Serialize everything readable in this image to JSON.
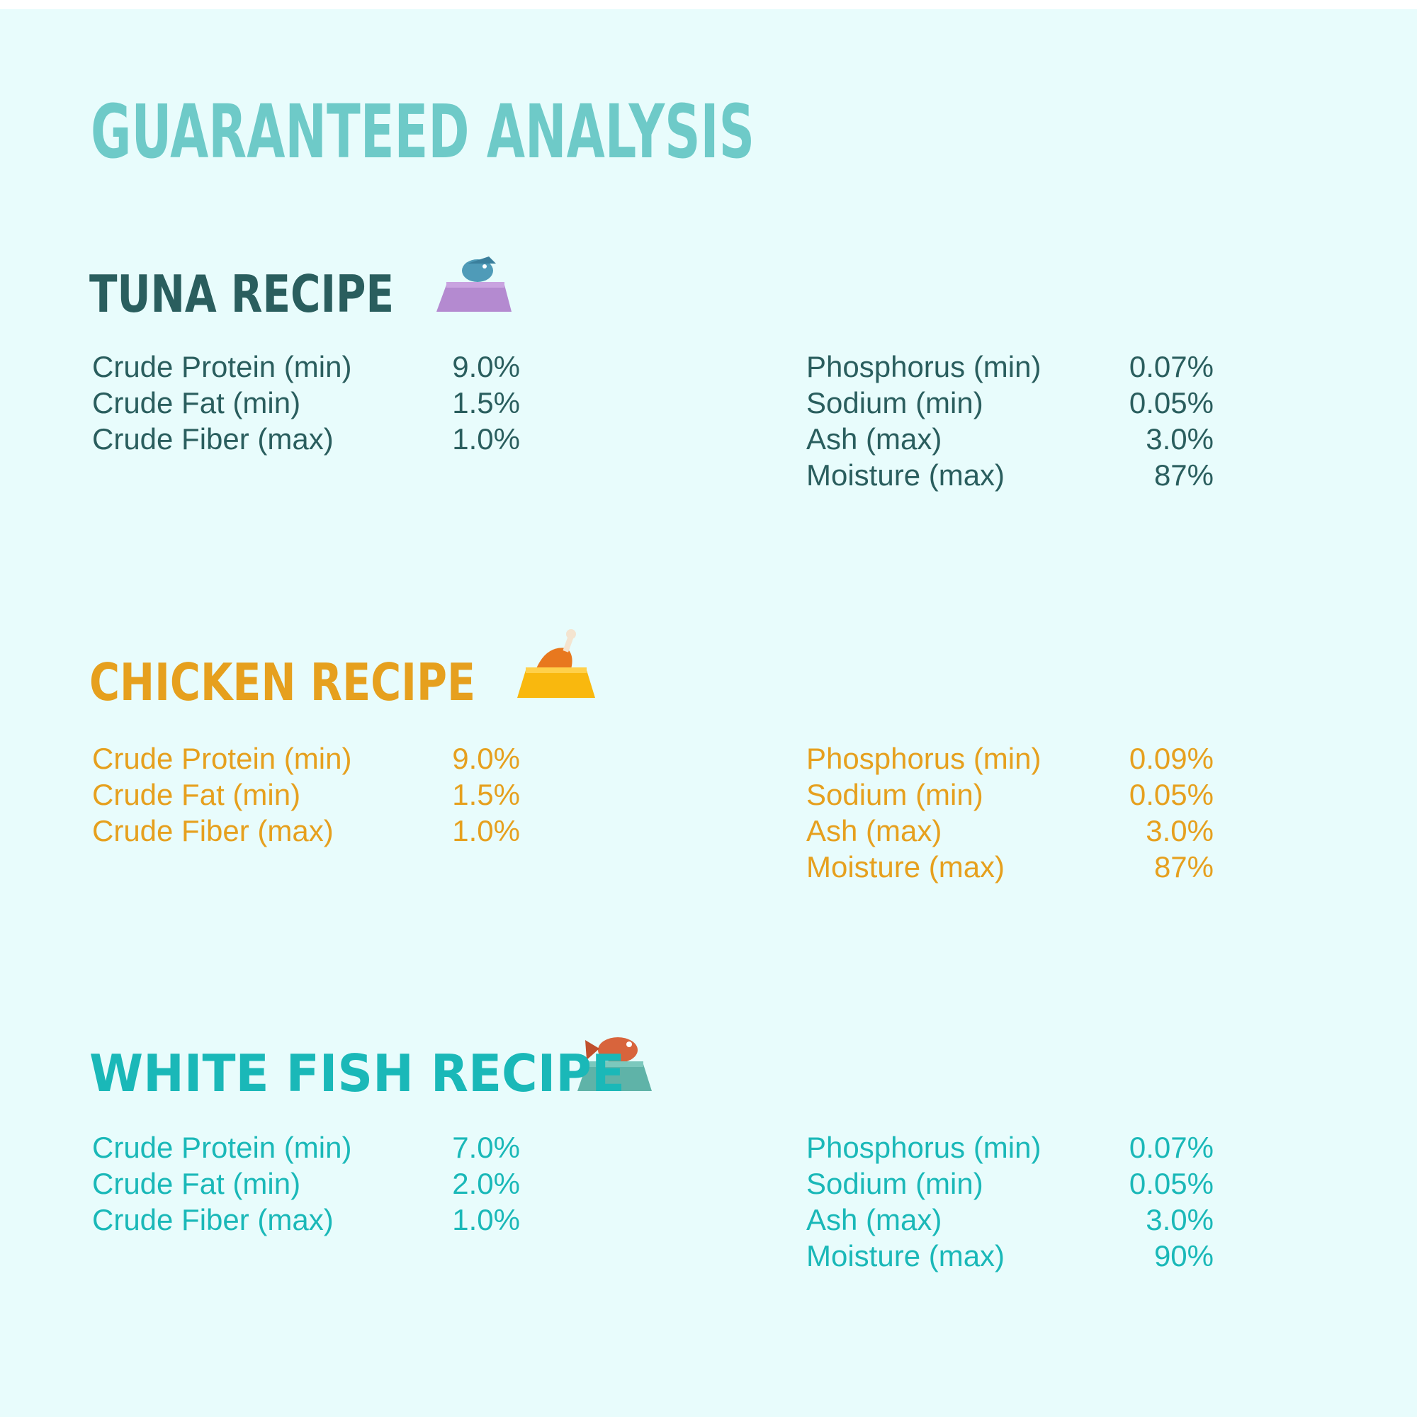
{
  "title": "GUARANTEED ANALYSIS",
  "sections": [
    {
      "name": "TUNA RECIPE",
      "left": [
        [
          "Crude Protein (min)",
          "9.0%"
        ],
        [
          "Crude Fat (min)",
          "1.5%"
        ],
        [
          "Crude Fiber (max)",
          "1.0%"
        ]
      ],
      "right": [
        [
          "Phosphorus (min)",
          "0.07%"
        ],
        [
          "Sodium (min)",
          "0.05%"
        ],
        [
          "Ash (max)",
          "3.0%"
        ],
        [
          "Moisture (max)",
          "87%"
        ]
      ]
    },
    {
      "name": "CHICKEN RECIPE",
      "left": [
        [
          "Crude Protein (min)",
          "9.0%"
        ],
        [
          "Crude Fat (min)",
          "1.5%"
        ],
        [
          "Crude Fiber (max)",
          "1.0%"
        ]
      ],
      "right": [
        [
          "Phosphorus (min)",
          "0.09%"
        ],
        [
          "Sodium (min)",
          "0.05%"
        ],
        [
          "Ash (max)",
          "3.0%"
        ],
        [
          "Moisture (max)",
          "87%"
        ]
      ]
    },
    {
      "name": "WHITE FISH RECIPE",
      "left": [
        [
          "Crude Protein (min)",
          "7.0%"
        ],
        [
          "Crude Fat (min)",
          "2.0%"
        ],
        [
          "Crude Fiber (max)",
          "1.0%"
        ]
      ],
      "right": [
        [
          "Phosphorus (min)",
          "0.07%"
        ],
        [
          "Sodium (min)",
          "0.05%"
        ],
        [
          "Ash (max)",
          "3.0%"
        ],
        [
          "Moisture (max)",
          "90%"
        ]
      ]
    }
  ]
}
